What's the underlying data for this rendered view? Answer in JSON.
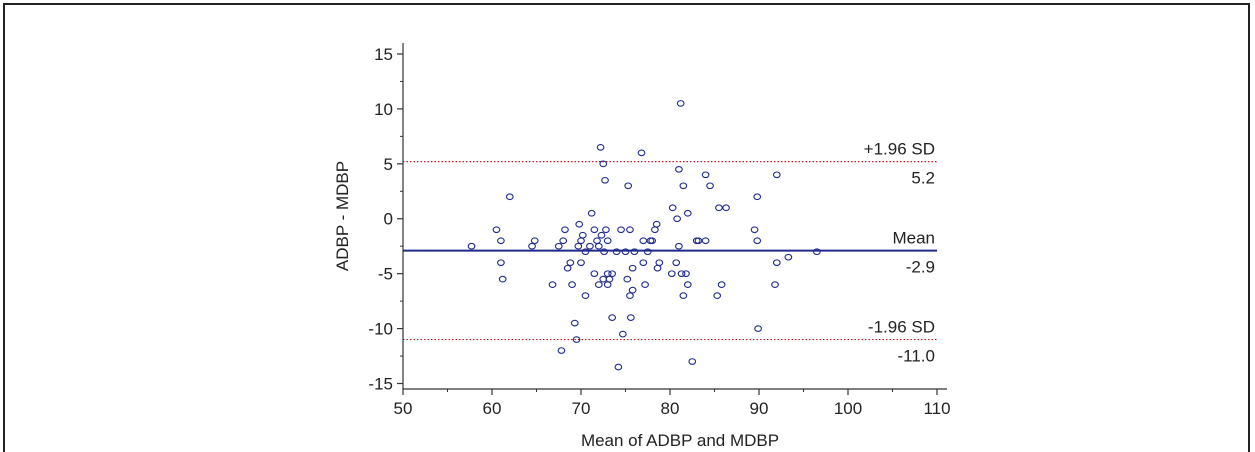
{
  "chart_data": {
    "type": "scatter",
    "title": "",
    "xlabel": "Mean of ADBP and MDBP",
    "ylabel": "ADBP - MDBP",
    "xlim": [
      50,
      110
    ],
    "ylim": [
      -15.5,
      16
    ],
    "x_ticks": [
      50,
      60,
      70,
      80,
      90,
      100,
      110
    ],
    "y_ticks": [
      15,
      10,
      5,
      0,
      -5,
      -10,
      -15
    ],
    "reference_lines": [
      {
        "name": "+1.96 SD",
        "value": 5.2,
        "value_label": "5.2",
        "style": "dotted",
        "color": "#b22222"
      },
      {
        "name": "Mean",
        "value": -2.9,
        "value_label": "-2.9",
        "style": "solid",
        "color": "#1f2a8a"
      },
      {
        "name": "-1.96 SD",
        "value": -11.0,
        "value_label": "-11.0",
        "style": "dotted",
        "color": "#b22222"
      }
    ],
    "point_color": "#1f2a8a",
    "points": [
      [
        57.7,
        -2.5
      ],
      [
        60.5,
        -1
      ],
      [
        61,
        -2
      ],
      [
        61,
        -4
      ],
      [
        61.2,
        -5.5
      ],
      [
        62,
        2
      ],
      [
        64.5,
        -2.5
      ],
      [
        64.8,
        -2
      ],
      [
        66.8,
        -6
      ],
      [
        67.5,
        -2.5
      ],
      [
        67.8,
        -12
      ],
      [
        68,
        -2
      ],
      [
        68.2,
        -1
      ],
      [
        68.5,
        -4.5
      ],
      [
        68.8,
        -4
      ],
      [
        69,
        -6
      ],
      [
        69.3,
        -9.5
      ],
      [
        69.5,
        -11
      ],
      [
        69.7,
        -2.5
      ],
      [
        69.8,
        -0.5
      ],
      [
        70,
        -4
      ],
      [
        70,
        -2
      ],
      [
        70.2,
        -1.5
      ],
      [
        70.5,
        -3
      ],
      [
        70.5,
        -7
      ],
      [
        71,
        -2.5
      ],
      [
        71.2,
        0.5
      ],
      [
        71.5,
        -5
      ],
      [
        71.5,
        -1
      ],
      [
        71.8,
        -2
      ],
      [
        72,
        -2.5
      ],
      [
        72,
        -6
      ],
      [
        72.2,
        6.5
      ],
      [
        72.3,
        -1.5
      ],
      [
        72.5,
        -5.5
      ],
      [
        72.5,
        5
      ],
      [
        72.6,
        -3
      ],
      [
        72.7,
        3.5
      ],
      [
        72.8,
        -1
      ],
      [
        73,
        -6
      ],
      [
        73,
        -2
      ],
      [
        73,
        -5
      ],
      [
        73.2,
        -5.5
      ],
      [
        73.5,
        -5
      ],
      [
        73.5,
        -9
      ],
      [
        74,
        -3
      ],
      [
        74.2,
        -13.5
      ],
      [
        74.5,
        -1
      ],
      [
        74.7,
        -10.5
      ],
      [
        75,
        -3
      ],
      [
        75.2,
        -5.5
      ],
      [
        75.3,
        3
      ],
      [
        75.5,
        -1
      ],
      [
        75.5,
        -7
      ],
      [
        75.6,
        -9
      ],
      [
        75.8,
        -6.5
      ],
      [
        75.8,
        -4.5
      ],
      [
        76,
        -3
      ],
      [
        76.8,
        6
      ],
      [
        77,
        -2
      ],
      [
        77,
        -4
      ],
      [
        77.2,
        -6
      ],
      [
        77.5,
        -3
      ],
      [
        77.8,
        -2
      ],
      [
        78,
        -2
      ],
      [
        78.3,
        -1
      ],
      [
        78.5,
        -0.5
      ],
      [
        78.6,
        -4.5
      ],
      [
        78.8,
        -4
      ],
      [
        80.2,
        -5
      ],
      [
        80.3,
        1
      ],
      [
        80.7,
        -4
      ],
      [
        80.8,
        0
      ],
      [
        81,
        -2.5
      ],
      [
        81,
        4.5
      ],
      [
        81.2,
        10.5
      ],
      [
        81.3,
        -5
      ],
      [
        81.5,
        3
      ],
      [
        81.5,
        -7
      ],
      [
        81.8,
        -5
      ],
      [
        82,
        -6
      ],
      [
        82,
        0.5
      ],
      [
        82.5,
        -13
      ],
      [
        83,
        -2
      ],
      [
        83.2,
        -2
      ],
      [
        84,
        -2
      ],
      [
        84,
        4
      ],
      [
        84.5,
        3
      ],
      [
        85.3,
        -7
      ],
      [
        85.5,
        1
      ],
      [
        85.8,
        -6
      ],
      [
        86.3,
        1
      ],
      [
        89.5,
        -1
      ],
      [
        89.8,
        -2
      ],
      [
        89.8,
        2
      ],
      [
        89.9,
        -10
      ],
      [
        91.8,
        -6
      ],
      [
        92,
        4
      ],
      [
        92,
        -4
      ],
      [
        93.3,
        -3.5
      ],
      [
        96.5,
        -3
      ]
    ]
  }
}
